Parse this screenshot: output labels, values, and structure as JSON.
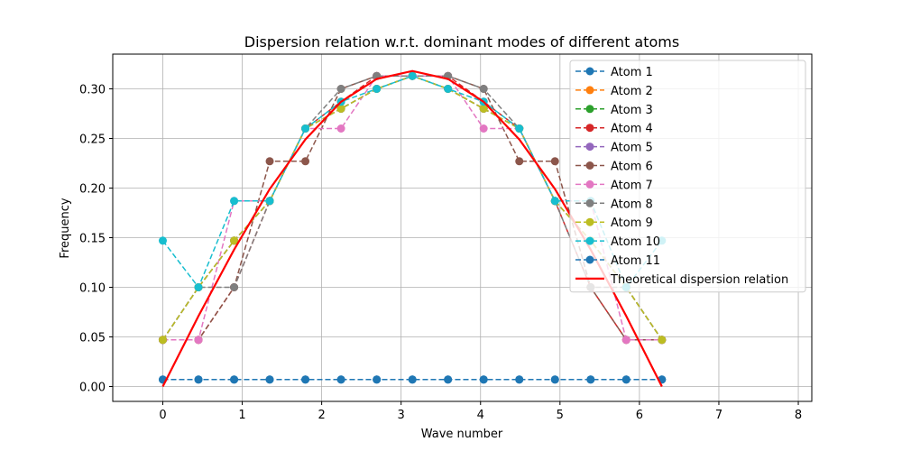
{
  "chart_data": {
    "type": "line",
    "title": "Dispersion relation w.r.t. dominant modes of different atoms",
    "xlabel": "Wave number",
    "ylabel": "Frequency",
    "xlim": [
      -0.63,
      8.17
    ],
    "ylim": [
      -0.015,
      0.335
    ],
    "xticks": [
      0,
      1,
      2,
      3,
      4,
      5,
      6,
      7,
      8
    ],
    "yticks": [
      0.0,
      0.05,
      0.1,
      0.15,
      0.2,
      0.25,
      0.3
    ],
    "ytick_labels": [
      "0.00",
      "0.05",
      "0.10",
      "0.15",
      "0.20",
      "0.25",
      "0.30"
    ],
    "grid": true,
    "legend_position": "top-right",
    "x": [
      0,
      0.449,
      0.898,
      1.346,
      1.795,
      2.244,
      2.693,
      3.142,
      3.59,
      4.039,
      4.488,
      4.937,
      5.386,
      5.834,
      6.283
    ],
    "series": [
      {
        "name": "Atom 1",
        "color": "#1f77b4",
        "values": [
          0.007,
          0.007,
          0.007,
          0.007,
          0.007,
          0.007,
          0.007,
          0.007,
          0.007,
          0.007,
          0.007,
          0.007,
          0.007,
          0.007,
          0.007
        ]
      },
      {
        "name": "Atom 2",
        "color": "#ff7f0e",
        "values": [
          0.047,
          0.1,
          0.147,
          0.187,
          0.26,
          0.28,
          0.3,
          0.313,
          0.3,
          0.28,
          0.26,
          0.187,
          0.147,
          0.1,
          0.047
        ]
      },
      {
        "name": "Atom 3",
        "color": "#2ca02c",
        "values": [
          0.047,
          0.1,
          0.147,
          0.187,
          0.26,
          0.28,
          0.3,
          0.313,
          0.3,
          0.28,
          0.26,
          0.187,
          0.147,
          0.1,
          0.047
        ]
      },
      {
        "name": "Atom 4",
        "color": "#d62728",
        "values": [
          0.047,
          0.047,
          0.1,
          0.187,
          0.26,
          0.287,
          0.313,
          0.313,
          0.313,
          0.287,
          0.26,
          0.187,
          0.1,
          0.047,
          0.047
        ]
      },
      {
        "name": "Atom 5",
        "color": "#9467bd",
        "values": [
          0.047,
          0.1,
          0.147,
          0.187,
          0.26,
          0.28,
          0.3,
          0.313,
          0.3,
          0.28,
          0.26,
          0.187,
          0.147,
          0.1,
          0.047
        ]
      },
      {
        "name": "Atom 6",
        "color": "#8c564b",
        "values": [
          0.047,
          0.047,
          0.1,
          0.227,
          0.227,
          0.3,
          0.313,
          0.313,
          0.313,
          0.3,
          0.227,
          0.227,
          0.1,
          0.047,
          0.047
        ]
      },
      {
        "name": "Atom 7",
        "color": "#e377c2",
        "values": [
          0.047,
          0.047,
          0.187,
          0.187,
          0.26,
          0.26,
          0.313,
          0.313,
          0.313,
          0.26,
          0.26,
          0.187,
          0.187,
          0.047,
          0.047
        ]
      },
      {
        "name": "Atom 8",
        "color": "#7f7f7f",
        "values": [
          0.047,
          0.1,
          0.1,
          0.187,
          0.26,
          0.3,
          0.313,
          0.313,
          0.313,
          0.3,
          0.26,
          0.187,
          0.1,
          0.1,
          0.047
        ]
      },
      {
        "name": "Atom 9",
        "color": "#bcbd22",
        "values": [
          0.047,
          0.1,
          0.147,
          0.187,
          0.26,
          0.28,
          0.3,
          0.313,
          0.3,
          0.28,
          0.26,
          0.187,
          0.147,
          0.1,
          0.047
        ]
      },
      {
        "name": "Atom 10",
        "color": "#17becf",
        "values": [
          0.147,
          0.1,
          0.187,
          0.187,
          0.26,
          0.287,
          0.3,
          0.313,
          0.3,
          0.287,
          0.26,
          0.187,
          0.187,
          0.1,
          0.147
        ]
      },
      {
        "name": "Atom 11",
        "color": "#1f77b4",
        "values": [
          0.007,
          0.007,
          0.007,
          0.007,
          0.007,
          0.007,
          0.007,
          0.007,
          0.007,
          0.007,
          0.007,
          0.007,
          0.007,
          0.007,
          0.007
        ]
      }
    ],
    "theoretical": {
      "name": "Theoretical dispersion relation",
      "color": "#ff0000",
      "x": [
        0,
        0.449,
        0.898,
        1.346,
        1.795,
        2.244,
        2.693,
        3.142,
        3.59,
        4.039,
        4.488,
        4.937,
        5.386,
        5.834,
        6.283
      ],
      "values": [
        0.0,
        0.071,
        0.138,
        0.199,
        0.249,
        0.287,
        0.31,
        0.318,
        0.31,
        0.287,
        0.249,
        0.199,
        0.138,
        0.071,
        0.0
      ]
    }
  }
}
